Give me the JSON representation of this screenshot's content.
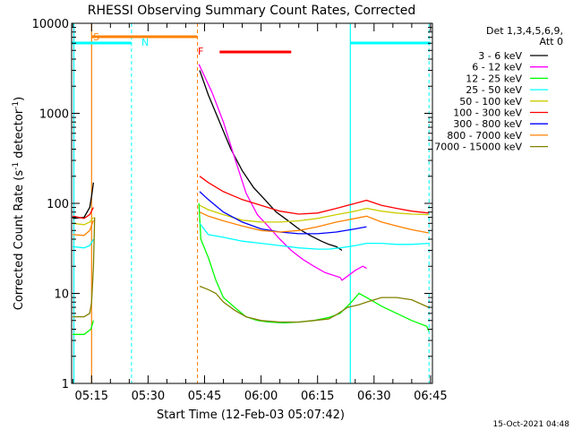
{
  "chart_data": {
    "type": "line",
    "title": "RHESSI Observing Summary Count Rates, Corrected",
    "xlabel": "Start Time (12-Feb-03 05:07:42)",
    "ylabel_parts": [
      "Corrected Count Rate (s",
      "-1",
      " detector",
      "-1",
      ")"
    ],
    "yscale": "log",
    "ylim": [
      1,
      10000
    ],
    "xlim_minutes": [
      309.7,
      405.5
    ],
    "y_ticks": [
      {
        "value": 1,
        "label": "1"
      },
      {
        "value": 10,
        "label": "10"
      },
      {
        "value": 100,
        "label": "100"
      },
      {
        "value": 1000,
        "label": "1000"
      },
      {
        "value": 10000,
        "label": "10000"
      }
    ],
    "x_ticks": [
      {
        "minutes": 315,
        "label": "05:15"
      },
      {
        "minutes": 330,
        "label": "05:30"
      },
      {
        "minutes": 345,
        "label": "05:45"
      },
      {
        "minutes": 360,
        "label": "06:00"
      },
      {
        "minutes": 375,
        "label": "06:15"
      },
      {
        "minutes": 390,
        "label": "06:30"
      },
      {
        "minutes": 405,
        "label": "06:45"
      }
    ],
    "legend_header": [
      "Det 1,3,4,5,6,9,",
      "Att 0"
    ],
    "legend_position": "right",
    "series": [
      {
        "name": "3 - 6 keV",
        "color": "#000000",
        "points": [
          [
            310,
            68
          ],
          [
            313,
            70
          ],
          [
            314.5,
            90
          ],
          [
            315,
            120
          ],
          [
            315.5,
            170
          ],
          [
            343.7,
            3000
          ],
          [
            346,
            1600
          ],
          [
            349,
            800
          ],
          [
            352,
            400
          ],
          [
            355,
            230
          ],
          [
            358,
            150
          ],
          [
            361,
            110
          ],
          [
            364,
            80
          ],
          [
            367,
            65
          ],
          [
            370,
            52
          ],
          [
            373,
            44
          ],
          [
            376,
            38
          ],
          [
            378,
            35
          ],
          [
            380,
            33
          ],
          [
            381.5,
            30
          ]
        ]
      },
      {
        "name": "6 - 12 keV",
        "color": "#ff00ff",
        "points": [
          [
            343.5,
            3500
          ],
          [
            347,
            1700
          ],
          [
            350,
            800
          ],
          [
            353,
            320
          ],
          [
            356,
            130
          ],
          [
            359,
            75
          ],
          [
            362,
            55
          ],
          [
            365,
            40
          ],
          [
            368,
            30
          ],
          [
            371,
            24
          ],
          [
            374,
            20
          ],
          [
            377,
            17
          ],
          [
            381,
            15
          ],
          [
            381.5,
            14
          ],
          [
            385,
            18
          ],
          [
            387,
            20
          ],
          [
            388,
            19
          ]
        ]
      },
      {
        "name": "12 - 25 keV",
        "color": "#00ff00",
        "points": [
          [
            310,
            3.5
          ],
          [
            313,
            3.5
          ],
          [
            314.8,
            4
          ],
          [
            315.5,
            5
          ],
          [
            343.5,
            100
          ],
          [
            344,
            40
          ],
          [
            346,
            25
          ],
          [
            348,
            14
          ],
          [
            350,
            9
          ],
          [
            353,
            7
          ],
          [
            356,
            5.5
          ],
          [
            359,
            5
          ],
          [
            362,
            4.8
          ],
          [
            366,
            4.7
          ],
          [
            370,
            4.8
          ],
          [
            374,
            5
          ],
          [
            378,
            5.4
          ],
          [
            381,
            6
          ],
          [
            384,
            8
          ],
          [
            386,
            10
          ],
          [
            388,
            9
          ],
          [
            392,
            7.2
          ],
          [
            396,
            6
          ],
          [
            400,
            5
          ],
          [
            404,
            4.3
          ],
          [
            404.5,
            3.8
          ]
        ]
      },
      {
        "name": "25 - 50 keV",
        "color": "#00ffff",
        "points": [
          [
            310,
            33
          ],
          [
            313,
            32
          ],
          [
            314.5,
            34
          ],
          [
            315.5,
            40
          ],
          [
            343.7,
            60
          ],
          [
            346,
            45
          ],
          [
            350,
            42
          ],
          [
            355,
            38
          ],
          [
            360,
            36
          ],
          [
            365,
            34
          ],
          [
            370,
            32
          ],
          [
            375,
            31
          ],
          [
            378,
            31
          ],
          [
            381,
            32
          ],
          [
            385,
            34
          ],
          [
            388,
            36
          ],
          [
            392,
            36
          ],
          [
            396,
            35
          ],
          [
            400,
            35
          ],
          [
            404.5,
            36
          ]
        ]
      },
      {
        "name": "50 - 100 keV",
        "color": "#cccc00",
        "points": [
          [
            310,
            60
          ],
          [
            313,
            58
          ],
          [
            314.5,
            62
          ],
          [
            315.5,
            70
          ],
          [
            343.7,
            95
          ],
          [
            346,
            85
          ],
          [
            350,
            75
          ],
          [
            355,
            65
          ],
          [
            360,
            62
          ],
          [
            365,
            62
          ],
          [
            370,
            64
          ],
          [
            375,
            68
          ],
          [
            380,
            75
          ],
          [
            385,
            82
          ],
          [
            388,
            88
          ],
          [
            392,
            82
          ],
          [
            396,
            78
          ],
          [
            400,
            76
          ],
          [
            404.5,
            75
          ]
        ]
      },
      {
        "name": "100 - 300 keV",
        "color": "#ff0000",
        "points": [
          [
            310,
            72
          ],
          [
            313,
            68
          ],
          [
            314.5,
            75
          ],
          [
            315.5,
            90
          ],
          [
            343.7,
            200
          ],
          [
            346,
            170
          ],
          [
            350,
            135
          ],
          [
            355,
            110
          ],
          [
            360,
            95
          ],
          [
            365,
            82
          ],
          [
            370,
            76
          ],
          [
            375,
            78
          ],
          [
            380,
            88
          ],
          [
            385,
            100
          ],
          [
            388,
            108
          ],
          [
            392,
            95
          ],
          [
            396,
            88
          ],
          [
            400,
            82
          ],
          [
            404.5,
            78
          ]
        ]
      },
      {
        "name": "300 - 800 keV",
        "color": "#0000ff",
        "points": [
          [
            343.7,
            135
          ],
          [
            346,
            110
          ],
          [
            350,
            80
          ],
          [
            355,
            62
          ],
          [
            360,
            52
          ],
          [
            365,
            48
          ],
          [
            370,
            46
          ],
          [
            375,
            46
          ],
          [
            380,
            48
          ],
          [
            385,
            52
          ],
          [
            388,
            55
          ]
        ]
      },
      {
        "name": "800 - 7000 keV",
        "color": "#ff8000",
        "points": [
          [
            310,
            45
          ],
          [
            313,
            44
          ],
          [
            314.5,
            50
          ],
          [
            315.5,
            65
          ],
          [
            343.7,
            80
          ],
          [
            346,
            72
          ],
          [
            350,
            64
          ],
          [
            355,
            56
          ],
          [
            360,
            50
          ],
          [
            365,
            48
          ],
          [
            370,
            50
          ],
          [
            375,
            55
          ],
          [
            380,
            62
          ],
          [
            385,
            68
          ],
          [
            388,
            72
          ],
          [
            392,
            62
          ],
          [
            396,
            56
          ],
          [
            400,
            51
          ],
          [
            404.5,
            47
          ]
        ]
      },
      {
        "name": "7000 - 15000 keV",
        "color": "#808000",
        "points": [
          [
            310,
            5.5
          ],
          [
            313,
            5.5
          ],
          [
            314.5,
            6
          ],
          [
            315,
            8
          ],
          [
            315.5,
            20
          ],
          [
            315.8,
            70
          ],
          [
            343.7,
            12
          ],
          [
            346,
            11
          ],
          [
            348,
            10
          ],
          [
            350,
            8
          ],
          [
            353,
            6.5
          ],
          [
            356,
            5.5
          ],
          [
            360,
            5
          ],
          [
            365,
            4.8
          ],
          [
            370,
            4.8
          ],
          [
            374,
            5
          ],
          [
            378,
            5.2
          ],
          [
            380,
            5.8
          ],
          [
            383,
            7
          ],
          [
            386,
            7.5
          ],
          [
            388,
            8
          ],
          [
            392,
            9
          ],
          [
            396,
            9
          ],
          [
            400,
            8.5
          ],
          [
            404.5,
            7
          ]
        ]
      }
    ],
    "annotations": [
      {
        "text": "S",
        "color": "#ff8000"
      },
      {
        "text": "N",
        "color": "#00ffff"
      },
      {
        "text": "F",
        "color": "#ff0000"
      }
    ],
    "footer_date": "15-Oct-2021 04:48"
  }
}
